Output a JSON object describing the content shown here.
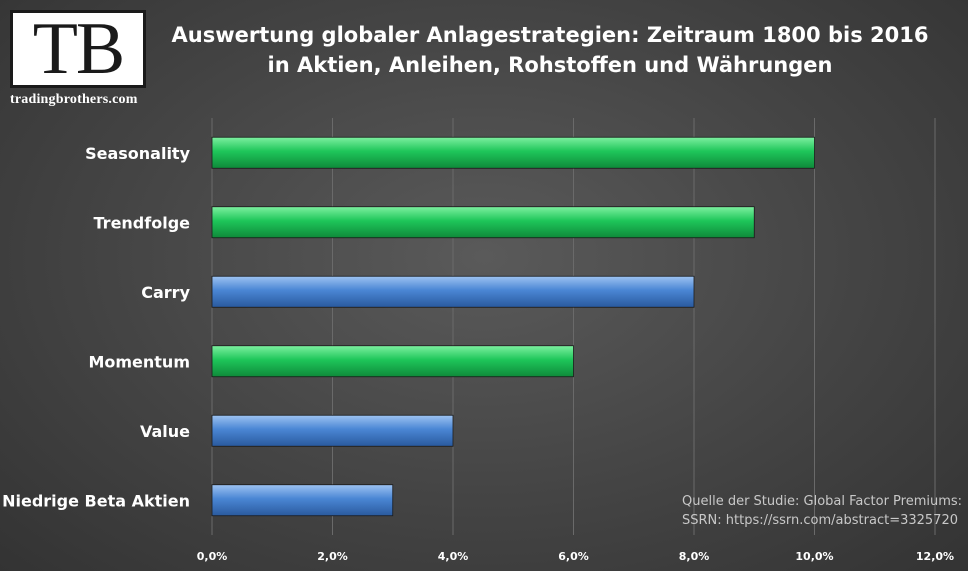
{
  "logo": {
    "mark": "TB",
    "website": "tradingbrothers.com"
  },
  "title_line1": "Auswertung globaler Anlagestrategien: Zeitraum 1800 bis 2016",
  "title_line2": "in Aktien, Anleihen, Rohstoffen und Währungen",
  "source_line1": "Quelle der Studie: Global Factor Premiums:",
  "source_line2": "SSRN: https://ssrn.com/abstract=3325720",
  "colors": {
    "green": "#1ec65a",
    "blue": "#4a86d4",
    "grid": "#6a6a6a"
  },
  "chart_data": {
    "type": "bar",
    "orientation": "horizontal",
    "title": "Auswertung globaler Anlagestrategien: Zeitraum 1800 bis 2016 in Aktien, Anleihen, Rohstoffen und Währungen",
    "categories": [
      "Seasonality",
      "Trendfolge",
      "Carry",
      "Momentum",
      "Value",
      "Niedrige Beta Aktien"
    ],
    "values": [
      10.0,
      9.0,
      8.0,
      6.0,
      4.0,
      3.0
    ],
    "bar_colors": [
      "green",
      "green",
      "blue",
      "green",
      "blue",
      "blue"
    ],
    "xlim": [
      0,
      12
    ],
    "xticks": [
      "0,0%",
      "2,0%",
      "4,0%",
      "6,0%",
      "8,0%",
      "10,0%",
      "12,0%"
    ],
    "xlabel": "",
    "ylabel": "",
    "grid": "vertical",
    "legend": "none"
  }
}
